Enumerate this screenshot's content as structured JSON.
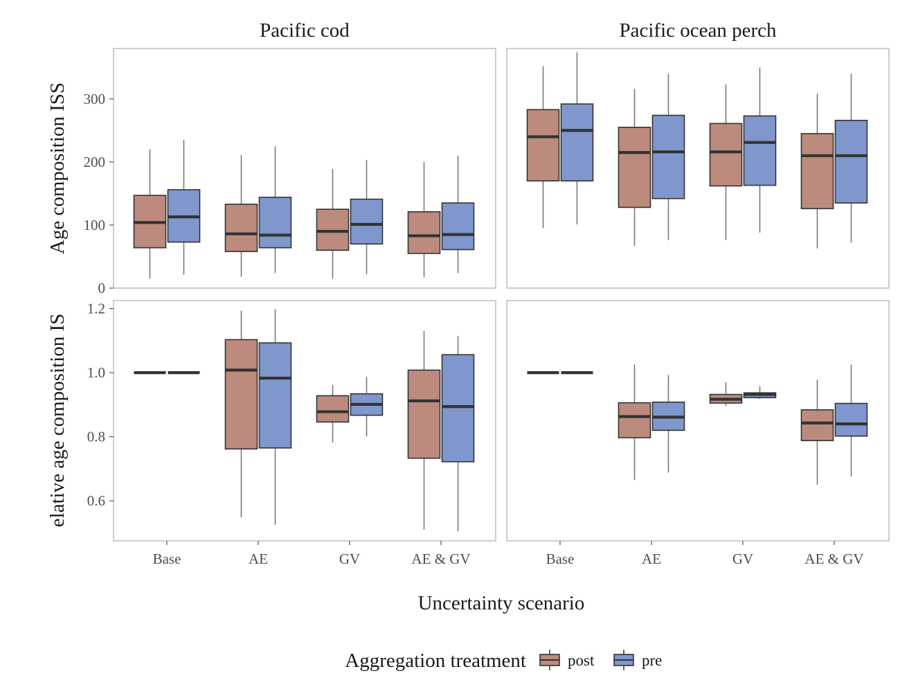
{
  "chart_data": {
    "type": "boxplot",
    "x_label": "Uncertainty scenario",
    "categories": [
      "Base",
      "AE",
      "GV",
      "AE & GV"
    ],
    "species": [
      "Pacific cod",
      "Pacific ocean perch"
    ],
    "row_y_labels": [
      "Age composition ISS",
      "elative age composition IS"
    ],
    "legend": {
      "title": "Aggregation treatment",
      "placement": "bottom",
      "items": [
        {
          "name": "post",
          "color": "#BC8B7E"
        },
        {
          "name": "pre",
          "color": "#7F97CC"
        }
      ]
    },
    "panels": [
      {
        "row": 0,
        "col": 0,
        "ylim": [
          0,
          380
        ],
        "yticks": [
          0,
          100,
          200,
          300
        ],
        "ytick_labels": [
          "0",
          "100",
          "200",
          "300"
        ],
        "boxes": [
          {
            "category": "Base",
            "treatment": "post",
            "min": 15,
            "q1": 64,
            "median": 104,
            "q3": 147,
            "max": 220
          },
          {
            "category": "Base",
            "treatment": "pre",
            "min": 21,
            "q1": 73,
            "median": 113,
            "q3": 156,
            "max": 235
          },
          {
            "category": "AE",
            "treatment": "post",
            "min": 18,
            "q1": 58,
            "median": 86,
            "q3": 133,
            "max": 211
          },
          {
            "category": "AE",
            "treatment": "pre",
            "min": 24,
            "q1": 64,
            "median": 84,
            "q3": 144,
            "max": 225
          },
          {
            "category": "GV",
            "treatment": "post",
            "min": 15,
            "q1": 60,
            "median": 90,
            "q3": 125,
            "max": 189
          },
          {
            "category": "GV",
            "treatment": "pre",
            "min": 22,
            "q1": 70,
            "median": 101,
            "q3": 141,
            "max": 203
          },
          {
            "category": "AE & GV",
            "treatment": "post",
            "min": 17,
            "q1": 55,
            "median": 83,
            "q3": 121,
            "max": 200
          },
          {
            "category": "AE & GV",
            "treatment": "pre",
            "min": 24,
            "q1": 61,
            "median": 85,
            "q3": 135,
            "max": 210
          }
        ]
      },
      {
        "row": 0,
        "col": 1,
        "ylim": [
          0,
          380
        ],
        "yticks": [
          0,
          100,
          200,
          300
        ],
        "ytick_labels": [],
        "boxes": [
          {
            "category": "Base",
            "treatment": "post",
            "min": 95,
            "q1": 170,
            "median": 240,
            "q3": 283,
            "max": 352
          },
          {
            "category": "Base",
            "treatment": "pre",
            "min": 101,
            "q1": 170,
            "median": 250,
            "q3": 292,
            "max": 374
          },
          {
            "category": "AE",
            "treatment": "post",
            "min": 67,
            "q1": 128,
            "median": 215,
            "q3": 255,
            "max": 316
          },
          {
            "category": "AE",
            "treatment": "pre",
            "min": 76,
            "q1": 142,
            "median": 216,
            "q3": 274,
            "max": 340
          },
          {
            "category": "GV",
            "treatment": "post",
            "min": 76,
            "q1": 162,
            "median": 216,
            "q3": 261,
            "max": 323
          },
          {
            "category": "GV",
            "treatment": "pre",
            "min": 88,
            "q1": 163,
            "median": 231,
            "q3": 273,
            "max": 350
          },
          {
            "category": "AE & GV",
            "treatment": "post",
            "min": 63,
            "q1": 126,
            "median": 210,
            "q3": 245,
            "max": 308
          },
          {
            "category": "AE & GV",
            "treatment": "pre",
            "min": 72,
            "q1": 135,
            "median": 210,
            "q3": 266,
            "max": 340
          }
        ]
      },
      {
        "row": 1,
        "col": 0,
        "ylim": [
          0.475,
          1.225
        ],
        "yticks": [
          0.6,
          0.8,
          1.0,
          1.2
        ],
        "ytick_labels": [
          "0.6",
          "0.8",
          "1.0",
          "1.2"
        ],
        "boxes": [
          {
            "category": "Base",
            "treatment": "post",
            "min": 1.0,
            "q1": 1.0,
            "median": 1.0,
            "q3": 1.0,
            "max": 1.0
          },
          {
            "category": "Base",
            "treatment": "pre",
            "min": 1.0,
            "q1": 1.0,
            "median": 1.0,
            "q3": 1.0,
            "max": 1.0
          },
          {
            "category": "AE",
            "treatment": "post",
            "min": 0.548,
            "q1": 0.762,
            "median": 1.008,
            "q3": 1.103,
            "max": 1.193
          },
          {
            "category": "AE",
            "treatment": "pre",
            "min": 0.525,
            "q1": 0.765,
            "median": 0.983,
            "q3": 1.093,
            "max": 1.198
          },
          {
            "category": "GV",
            "treatment": "post",
            "min": 0.782,
            "q1": 0.846,
            "median": 0.878,
            "q3": 0.928,
            "max": 0.962
          },
          {
            "category": "GV",
            "treatment": "pre",
            "min": 0.801,
            "q1": 0.867,
            "median": 0.901,
            "q3": 0.934,
            "max": 0.987
          },
          {
            "category": "AE & GV",
            "treatment": "post",
            "min": 0.51,
            "q1": 0.733,
            "median": 0.912,
            "q3": 1.008,
            "max": 1.13
          },
          {
            "category": "AE & GV",
            "treatment": "pre",
            "min": 0.505,
            "q1": 0.722,
            "median": 0.894,
            "q3": 1.056,
            "max": 1.114
          }
        ]
      },
      {
        "row": 1,
        "col": 1,
        "ylim": [
          0.475,
          1.225
        ],
        "yticks": [
          0.6,
          0.8,
          1.0,
          1.2
        ],
        "ytick_labels": [],
        "boxes": [
          {
            "category": "Base",
            "treatment": "post",
            "min": 1.0,
            "q1": 1.0,
            "median": 1.0,
            "q3": 1.0,
            "max": 1.0
          },
          {
            "category": "Base",
            "treatment": "pre",
            "min": 1.0,
            "q1": 1.0,
            "median": 1.0,
            "q3": 1.0,
            "max": 1.0
          },
          {
            "category": "AE",
            "treatment": "post",
            "min": 0.665,
            "q1": 0.797,
            "median": 0.863,
            "q3": 0.906,
            "max": 1.025
          },
          {
            "category": "AE",
            "treatment": "pre",
            "min": 0.688,
            "q1": 0.82,
            "median": 0.861,
            "q3": 0.908,
            "max": 0.993
          },
          {
            "category": "GV",
            "treatment": "post",
            "min": 0.896,
            "q1": 0.905,
            "median": 0.917,
            "q3": 0.932,
            "max": 0.97
          },
          {
            "category": "GV",
            "treatment": "pre",
            "min": 0.918,
            "q1": 0.922,
            "median": 0.932,
            "q3": 0.937,
            "max": 0.957
          },
          {
            "category": "AE & GV",
            "treatment": "post",
            "min": 0.65,
            "q1": 0.788,
            "median": 0.843,
            "q3": 0.884,
            "max": 0.978
          },
          {
            "category": "AE & GV",
            "treatment": "pre",
            "min": 0.676,
            "q1": 0.802,
            "median": 0.84,
            "q3": 0.904,
            "max": 1.025
          }
        ]
      }
    ]
  }
}
